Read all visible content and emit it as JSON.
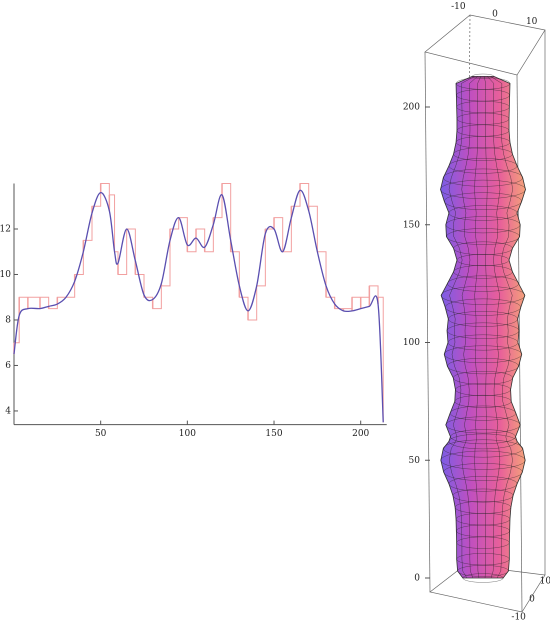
{
  "chart_data": [
    {
      "type": "line",
      "x": [
        0,
        3,
        8,
        15,
        20,
        25,
        30,
        35,
        40,
        45,
        50,
        55,
        58,
        60,
        65,
        70,
        75,
        80,
        85,
        90,
        95,
        100,
        105,
        110,
        115,
        120,
        125,
        130,
        135,
        140,
        145,
        150,
        155,
        160,
        165,
        170,
        175,
        180,
        185,
        190,
        195,
        200,
        205,
        210,
        213
      ],
      "series": [
        {
          "color": "#f2a0a0",
          "step": true,
          "values": [
            7,
            9,
            9,
            9,
            8.5,
            9,
            9,
            10,
            11.5,
            13,
            14,
            13.5,
            11,
            10,
            12,
            10,
            9,
            8.5,
            9.5,
            12,
            12.5,
            11,
            12,
            11,
            12.5,
            14,
            11,
            9,
            8,
            9.5,
            12,
            12.5,
            11,
            13,
            14,
            13,
            11,
            9,
            8.5,
            8.5,
            9,
            9,
            9.5,
            9,
            3.5
          ]
        },
        {
          "color": "#5a4fb0",
          "values": [
            6.5,
            8.2,
            8.5,
            8.5,
            8.6,
            8.7,
            9.0,
            9.7,
            11.0,
            12.7,
            13.6,
            12.8,
            11.0,
            10.5,
            12.0,
            10.6,
            9.1,
            8.9,
            9.6,
            11.5,
            12.5,
            11.3,
            11.6,
            11.2,
            12.2,
            13.5,
            11.5,
            9.5,
            8.4,
            9.5,
            11.8,
            12.0,
            11.0,
            12.5,
            13.7,
            12.8,
            11.0,
            9.5,
            8.7,
            8.4,
            8.4,
            8.5,
            8.6,
            8.7,
            3.5
          ]
        }
      ],
      "xlim": [
        0,
        215
      ],
      "xticks": [
        50,
        100,
        150,
        200
      ],
      "ylim": [
        3.4,
        14
      ],
      "yticks": [
        4,
        6,
        8,
        10,
        12
      ]
    },
    {
      "type": "surface",
      "zlim": [
        0,
        220
      ],
      "zticks": [
        0,
        50,
        100,
        150,
        200
      ],
      "xlim": [
        -15,
        15
      ],
      "xticks": [
        -10,
        0,
        10
      ],
      "ylim": [
        -15,
        15
      ],
      "yticks": [
        -10,
        0,
        10
      ]
    }
  ]
}
